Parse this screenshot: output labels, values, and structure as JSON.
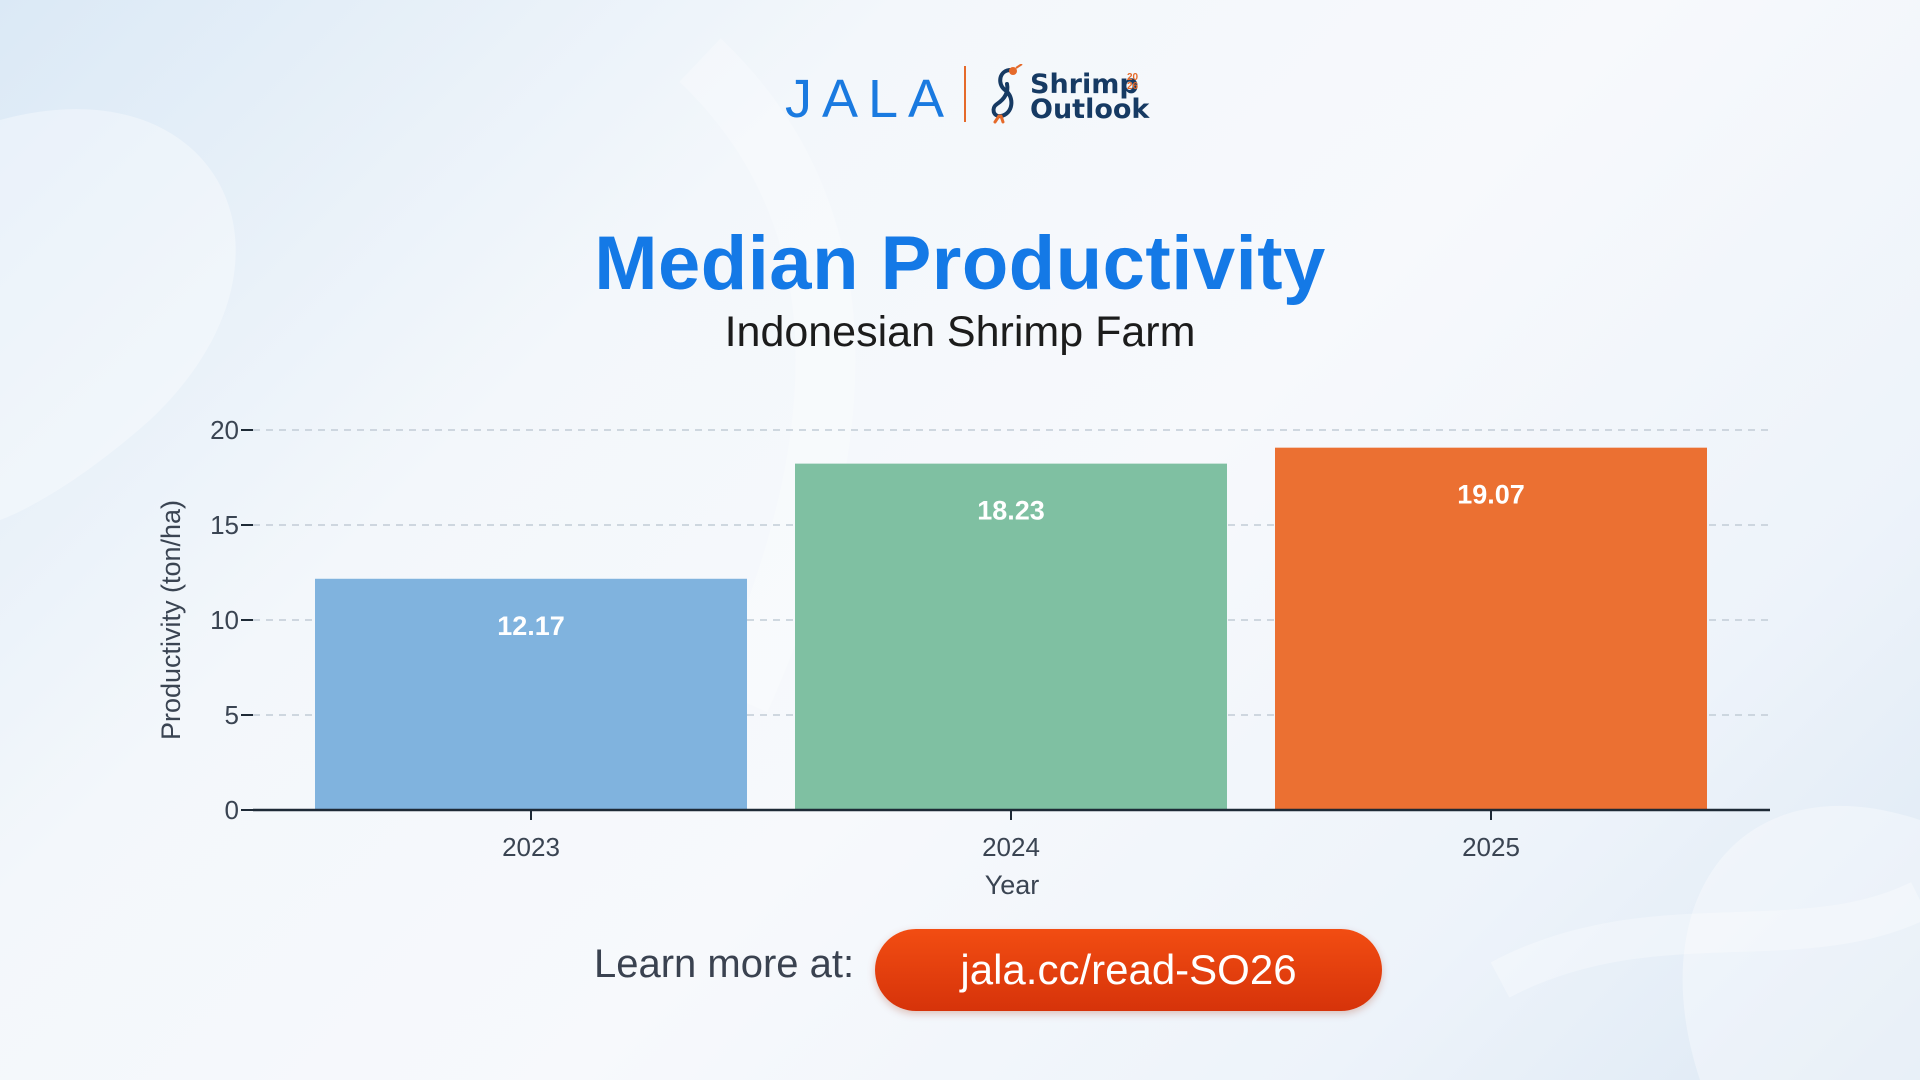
{
  "branding": {
    "logo_text": "JALA",
    "sub_logo_line1": "Shrimp",
    "sub_logo_line2": "Outlook",
    "sub_logo_year": "20 26",
    "brand_blue": "#1a7ae0",
    "brand_orange": "#e56a2a"
  },
  "chart_data": {
    "type": "bar",
    "title": "Median Productivity",
    "subtitle": "Indonesian Shrimp Farm",
    "xlabel": "Year",
    "ylabel": "Productivity (ton/ha)",
    "categories": [
      "2023",
      "2024",
      "2025"
    ],
    "values": [
      12.17,
      18.23,
      19.07
    ],
    "value_labels": [
      "12.17",
      "18.23",
      "19.07"
    ],
    "colors": [
      "#80b3de",
      "#7fc0a2",
      "#eb7032"
    ],
    "ylim": [
      0,
      20
    ],
    "yticks": [
      0,
      5,
      10,
      15,
      20
    ],
    "grid": "horizontal dashed",
    "legend": "none"
  },
  "cta": {
    "label": "Learn more at:",
    "link": "jala.cc/read-SO26"
  }
}
